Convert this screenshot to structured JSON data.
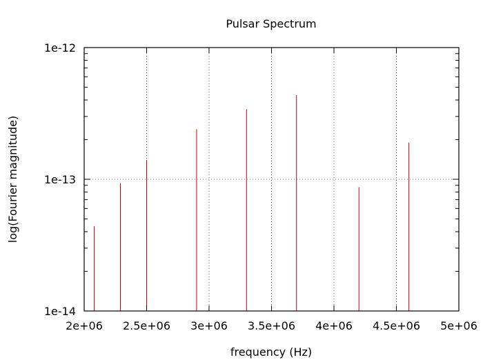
{
  "chart_data": {
    "type": "bar",
    "title": "Pulsar Spectrum",
    "xlabel": "frequency (Hz)",
    "ylabel": "log(Fourier magnitude)",
    "xlim": [
      2000000,
      5000000
    ],
    "ylim": [
      1e-14,
      1e-12
    ],
    "yscale": "log",
    "grid": true,
    "xticks": [
      2000000,
      2500000,
      3000000,
      3500000,
      4000000,
      4500000,
      5000000
    ],
    "xtick_labels": [
      "2e+06",
      "2.5e+06",
      "3e+06",
      "3.5e+06",
      "4e+06",
      "4.5e+06",
      "5e+06"
    ],
    "yticks": [
      1e-14,
      1e-13,
      1e-12
    ],
    "ytick_labels": [
      "1e-14",
      "1e-13",
      "1e-12"
    ],
    "series": [
      {
        "color": "#cc0000",
        "x": [
          2080000,
          2290000,
          2500000,
          2900000,
          3300000,
          3700000,
          4200000,
          4600000
        ],
        "values": [
          4.4e-14,
          9.3e-14,
          1.4e-13,
          2.4e-13,
          3.4e-13,
          4.35e-13,
          8.7e-14,
          1.9e-13
        ]
      }
    ]
  }
}
